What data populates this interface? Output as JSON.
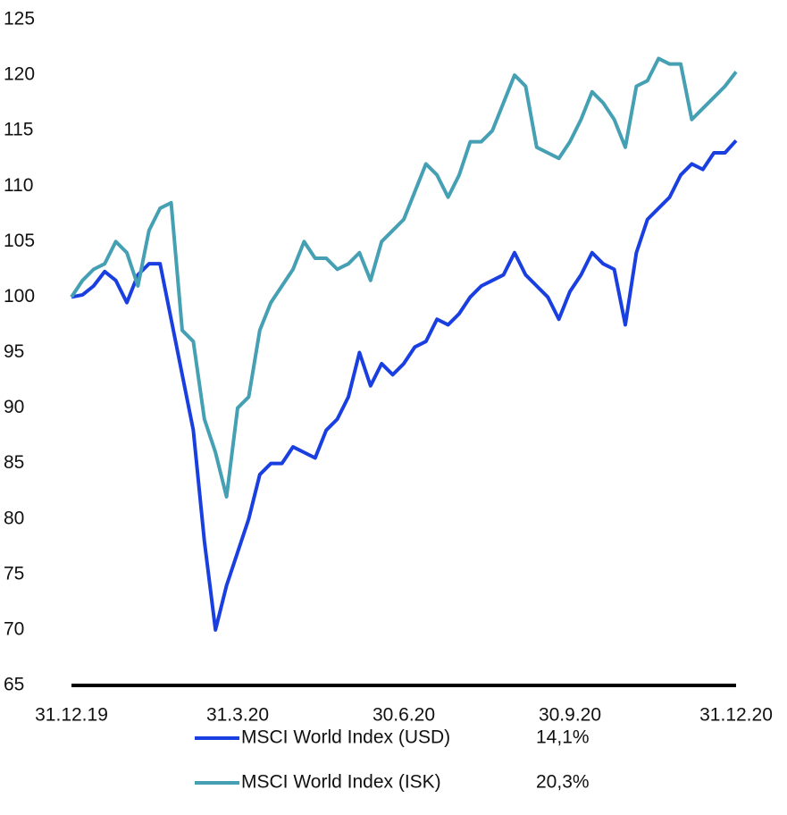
{
  "chart_data": {
    "type": "line",
    "categories": [
      "31.12.19",
      null,
      null,
      null,
      null,
      null,
      null,
      null,
      null,
      null,
      null,
      null,
      null,
      null,
      null,
      "31.3.20",
      null,
      null,
      null,
      null,
      null,
      null,
      null,
      null,
      null,
      null,
      null,
      null,
      null,
      null,
      "30.6.20",
      null,
      null,
      null,
      null,
      null,
      null,
      null,
      null,
      null,
      null,
      null,
      null,
      null,
      null,
      "30.9.20",
      null,
      null,
      null,
      null,
      null,
      null,
      null,
      null,
      null,
      null,
      null,
      null,
      null,
      null,
      "31.12.20"
    ],
    "series": [
      {
        "name": "MSCI World Index (USD)",
        "return_label": "14,1%",
        "color": "#1a3fe0",
        "values": [
          100,
          100.2,
          101,
          102.3,
          101.5,
          99.5,
          102,
          103,
          103,
          98,
          93,
          88,
          78,
          70,
          74,
          77,
          80,
          84,
          85,
          85,
          86.5,
          86,
          85.5,
          88,
          89,
          91,
          95,
          92,
          94,
          93,
          94,
          95.5,
          96,
          98,
          97.5,
          98.5,
          100,
          101,
          101.5,
          102,
          104,
          102,
          101,
          100,
          98,
          100.5,
          102,
          104,
          103,
          102.5,
          97.5,
          104,
          107,
          108,
          109,
          111,
          112,
          111.5,
          113,
          113,
          114.1
        ]
      },
      {
        "name": "MSCI World Index (ISK)",
        "return_label": "20,3%",
        "color": "#45a0b4",
        "values": [
          100,
          101.5,
          102.5,
          103,
          105,
          104,
          101,
          106,
          108,
          108.5,
          97,
          96,
          89,
          86,
          82,
          90,
          91,
          97,
          99.5,
          101,
          102.5,
          105,
          103.5,
          103.5,
          102.5,
          103,
          104,
          101.5,
          105,
          106,
          107,
          109.5,
          112,
          111,
          109,
          111,
          114,
          114,
          115,
          117.5,
          120,
          119,
          113.5,
          113,
          112.5,
          114,
          116,
          118.5,
          117.5,
          116,
          113.5,
          119,
          119.5,
          121.5,
          121,
          121,
          116,
          117,
          118,
          119,
          120.3
        ]
      }
    ],
    "ylim": [
      65,
      125
    ],
    "yticks": [
      65,
      70,
      75,
      80,
      85,
      90,
      95,
      100,
      105,
      110,
      115,
      120,
      125
    ],
    "grid": false
  }
}
